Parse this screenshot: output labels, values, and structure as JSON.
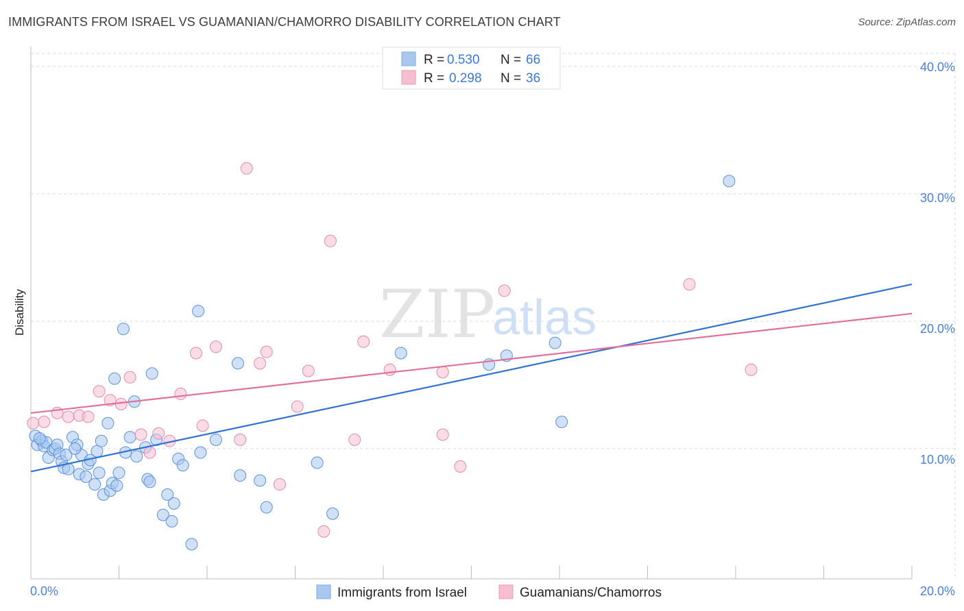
{
  "header": {
    "title": "IMMIGRANTS FROM ISRAEL VS GUAMANIAN/CHAMORRO DISABILITY CORRELATION CHART",
    "source": "Source: ZipAtlas.com"
  },
  "watermark": {
    "zip": "ZIP",
    "atlas": "atlas"
  },
  "colors": {
    "blue_fill": "#a9c8f0",
    "blue_line": "#2f73d2",
    "pink_fill": "#f6bfd1",
    "pink_line": "#e0709a",
    "tick_text": "#4a7fd1",
    "grid": "#d8d8d8"
  },
  "legend": {
    "rows": [
      {
        "r_label": "R = ",
        "r_value": "0.530",
        "n_label": "N = ",
        "n_value": "66"
      },
      {
        "r_label": "R = ",
        "r_value": "0.298",
        "n_label": "N = ",
        "n_value": "36"
      }
    ]
  },
  "chart_data": {
    "type": "scatter",
    "title": "IMMIGRANTS FROM ISRAEL VS GUAMANIAN/CHAMORRO DISABILITY CORRELATION CHART",
    "xlabel": "",
    "ylabel": "Disability",
    "xlim": [
      0,
      20
    ],
    "ylim": [
      0,
      40
    ],
    "x_tick_labels": [
      "0.0%",
      "20.0%"
    ],
    "y_ticks": [
      10,
      20,
      30,
      40
    ],
    "y_tick_labels": [
      "10.0%",
      "20.0%",
      "30.0%",
      "40.0%"
    ],
    "grid": true,
    "series": [
      {
        "name": "Immigrants from Israel",
        "color": "#a9c8f0",
        "line_color": "#2f73d2",
        "r": 0.53,
        "n": 66,
        "trend": {
          "x": [
            0,
            20
          ],
          "y": [
            8.2,
            22.9
          ]
        },
        "points": [
          [
            0.1,
            11.0
          ],
          [
            0.15,
            10.3
          ],
          [
            0.25,
            10.6
          ],
          [
            0.3,
            10.2
          ],
          [
            0.35,
            10.5
          ],
          [
            0.4,
            9.3
          ],
          [
            0.5,
            9.9
          ],
          [
            0.55,
            10.0
          ],
          [
            0.6,
            10.3
          ],
          [
            0.65,
            9.6
          ],
          [
            0.7,
            9.0
          ],
          [
            0.75,
            8.5
          ],
          [
            0.8,
            9.5
          ],
          [
            0.85,
            8.4
          ],
          [
            0.95,
            10.9
          ],
          [
            1.05,
            10.3
          ],
          [
            1.1,
            8.0
          ],
          [
            1.15,
            9.5
          ],
          [
            1.25,
            7.8
          ],
          [
            1.3,
            8.8
          ],
          [
            1.35,
            9.1
          ],
          [
            1.45,
            7.2
          ],
          [
            1.5,
            9.8
          ],
          [
            1.55,
            8.1
          ],
          [
            1.6,
            10.6
          ],
          [
            1.65,
            6.4
          ],
          [
            1.75,
            12.0
          ],
          [
            1.8,
            6.7
          ],
          [
            1.85,
            7.3
          ],
          [
            1.9,
            15.5
          ],
          [
            1.95,
            7.1
          ],
          [
            2.0,
            8.1
          ],
          [
            2.1,
            19.4
          ],
          [
            2.15,
            9.7
          ],
          [
            2.25,
            10.9
          ],
          [
            2.35,
            13.7
          ],
          [
            2.4,
            9.4
          ],
          [
            2.6,
            10.1
          ],
          [
            2.65,
            7.6
          ],
          [
            2.7,
            7.4
          ],
          [
            2.75,
            15.9
          ],
          [
            2.85,
            10.7
          ],
          [
            3.0,
            4.8
          ],
          [
            3.1,
            6.4
          ],
          [
            3.2,
            4.3
          ],
          [
            3.25,
            5.7
          ],
          [
            3.35,
            9.2
          ],
          [
            3.45,
            8.7
          ],
          [
            3.65,
            2.5
          ],
          [
            3.8,
            20.8
          ],
          [
            3.85,
            9.7
          ],
          [
            4.2,
            10.7
          ],
          [
            4.7,
            16.7
          ],
          [
            4.75,
            7.9
          ],
          [
            5.2,
            7.5
          ],
          [
            5.35,
            5.4
          ],
          [
            6.5,
            8.9
          ],
          [
            6.85,
            4.9
          ],
          [
            8.4,
            17.5
          ],
          [
            10.4,
            16.6
          ],
          [
            10.8,
            17.3
          ],
          [
            11.9,
            18.3
          ],
          [
            12.05,
            12.1
          ],
          [
            15.85,
            31.0
          ],
          [
            0.2,
            10.8
          ],
          [
            1.0,
            10.0
          ]
        ]
      },
      {
        "name": "Guamanians/Chamorros",
        "color": "#f6bfd1",
        "line_color": "#e0709a",
        "r": 0.298,
        "n": 36,
        "trend": {
          "x": [
            0,
            20
          ],
          "y": [
            12.8,
            20.6
          ]
        },
        "points": [
          [
            0.05,
            12.0
          ],
          [
            0.3,
            12.1
          ],
          [
            0.6,
            12.8
          ],
          [
            0.85,
            12.5
          ],
          [
            1.1,
            12.6
          ],
          [
            1.3,
            12.5
          ],
          [
            1.55,
            14.5
          ],
          [
            1.8,
            13.8
          ],
          [
            2.05,
            13.5
          ],
          [
            2.25,
            15.6
          ],
          [
            2.5,
            11.1
          ],
          [
            2.7,
            9.7
          ],
          [
            2.9,
            11.2
          ],
          [
            3.15,
            10.6
          ],
          [
            3.4,
            14.3
          ],
          [
            3.75,
            17.5
          ],
          [
            3.9,
            11.8
          ],
          [
            4.2,
            18.0
          ],
          [
            4.75,
            10.7
          ],
          [
            4.9,
            32.0
          ],
          [
            5.2,
            16.7
          ],
          [
            5.35,
            17.6
          ],
          [
            5.65,
            7.2
          ],
          [
            6.05,
            13.3
          ],
          [
            6.3,
            16.1
          ],
          [
            6.65,
            3.5
          ],
          [
            6.8,
            26.3
          ],
          [
            7.35,
            10.7
          ],
          [
            7.55,
            18.4
          ],
          [
            8.15,
            16.2
          ],
          [
            9.35,
            11.1
          ],
          [
            9.35,
            16.0
          ],
          [
            9.75,
            8.6
          ],
          [
            10.75,
            22.4
          ],
          [
            14.95,
            22.9
          ],
          [
            16.35,
            16.2
          ]
        ]
      }
    ]
  },
  "bottom_legend": {
    "items": [
      "Immigrants from Israel",
      "Guamanians/Chamorros"
    ]
  }
}
